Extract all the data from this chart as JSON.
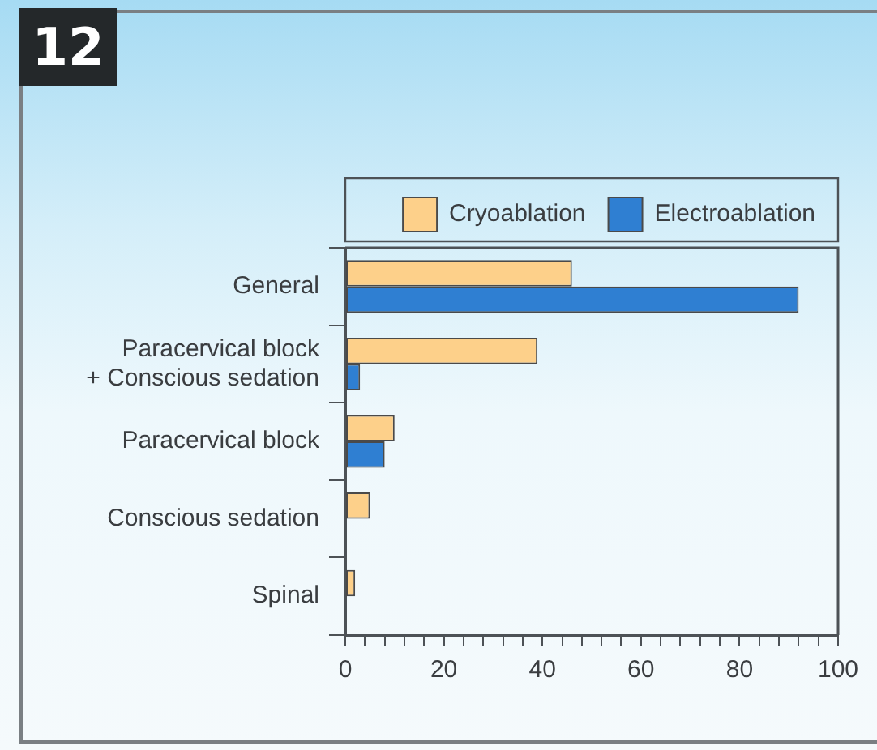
{
  "chart_data": {
    "type": "bar",
    "title": "12",
    "orientation": "horizontal",
    "categories": [
      "General",
      "Paracervical block\n+ Conscious sedation",
      "Paracervical block",
      "Conscious sedation",
      "Spinal"
    ],
    "series": [
      {
        "name": "Cryoablation",
        "color": "#fdd08a",
        "values": [
          46,
          39,
          10,
          5,
          2
        ]
      },
      {
        "name": "Electroablation",
        "color": "#2f7fd2",
        "values": [
          92,
          3,
          8,
          0,
          0
        ]
      }
    ],
    "xlim": [
      0,
      100
    ],
    "xticks": [
      0,
      {
        "value": 4,
        "label": null
      },
      {
        "value": 8,
        "label": null
      },
      {
        "value": 12,
        "label": null
      },
      {
        "value": 16,
        "label": null
      },
      20,
      {
        "value": 24,
        "label": null
      },
      {
        "value": 28,
        "label": null
      },
      {
        "value": 32,
        "label": null
      },
      {
        "value": 36,
        "label": null
      },
      40,
      {
        "value": 44,
        "label": null
      },
      {
        "value": 48,
        "label": null
      },
      {
        "value": 52,
        "label": null
      },
      {
        "value": 56,
        "label": null
      },
      60,
      {
        "value": 64,
        "label": null
      },
      {
        "value": 68,
        "label": null
      },
      {
        "value": 72,
        "label": null
      },
      {
        "value": 76,
        "label": null
      },
      80,
      {
        "value": 84,
        "label": null
      },
      {
        "value": 88,
        "label": null
      },
      {
        "value": 92,
        "label": null
      },
      {
        "value": 96,
        "label": null
      },
      100
    ],
    "legend": "top"
  }
}
